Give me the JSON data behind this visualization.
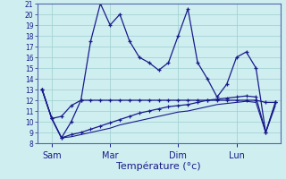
{
  "background_color": "#ceeef0",
  "grid_color": "#9ecece",
  "line_color": "#1a1a8c",
  "spine_color": "#5566aa",
  "ylim": [
    8,
    21
  ],
  "yticks": [
    8,
    9,
    10,
    11,
    12,
    13,
    14,
    15,
    16,
    17,
    18,
    19,
    20,
    21
  ],
  "ytick_fontsize": 5.5,
  "xlabel": "Température (°c)",
  "xlabel_fontsize": 8,
  "xtick_labels": [
    "Sam",
    "Mar",
    "Dim",
    "Lun"
  ],
  "xtick_positions": [
    1,
    7,
    14,
    20
  ],
  "total_points": 25,
  "series": {
    "high": [
      13.0,
      10.3,
      8.5,
      10.0,
      12.0,
      17.5,
      21.0,
      19.0,
      20.0,
      17.5,
      16.0,
      15.5,
      14.8,
      15.5,
      18.0,
      20.5,
      15.5,
      14.0,
      12.3,
      13.5,
      16.0,
      16.5,
      15.0,
      9.0,
      11.8
    ],
    "flat": [
      13.0,
      10.3,
      10.5,
      11.5,
      12.0,
      12.0,
      12.0,
      12.0,
      12.0,
      12.0,
      12.0,
      12.0,
      12.0,
      12.0,
      12.0,
      12.0,
      12.0,
      12.0,
      12.0,
      12.0,
      12.0,
      12.0,
      12.0,
      11.8,
      11.8
    ],
    "low1": [
      13.0,
      10.3,
      8.5,
      8.8,
      9.0,
      9.3,
      9.6,
      9.9,
      10.2,
      10.5,
      10.8,
      11.0,
      11.2,
      11.4,
      11.5,
      11.6,
      11.8,
      12.0,
      12.1,
      12.2,
      12.3,
      12.4,
      12.3,
      9.0,
      11.8
    ],
    "low2": [
      13.0,
      10.3,
      8.5,
      8.6,
      8.8,
      9.0,
      9.2,
      9.4,
      9.7,
      9.9,
      10.1,
      10.3,
      10.5,
      10.7,
      10.9,
      11.0,
      11.2,
      11.4,
      11.6,
      11.7,
      11.8,
      11.9,
      11.8,
      9.0,
      11.5
    ]
  }
}
